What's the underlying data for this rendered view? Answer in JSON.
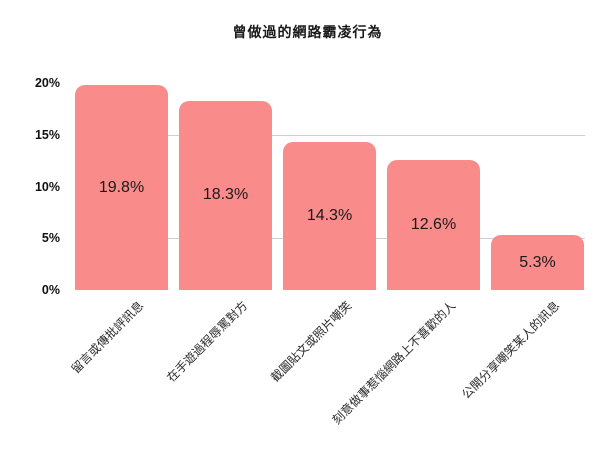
{
  "chart_data": {
    "type": "bar",
    "title": "曾做過的網路霸凌行為",
    "categories": [
      "留言或傳批評訊息",
      "在手遊過程辱罵對方",
      "截圖貼文或照片嘲笑",
      "刻意做事惹惱網路上不喜歡的人",
      "公開分享嘲笑某人的訊息"
    ],
    "values": [
      19.8,
      18.3,
      14.3,
      12.6,
      5.3
    ],
    "value_labels": [
      "19.8%",
      "18.3%",
      "14.3%",
      "12.6%",
      "5.3%"
    ],
    "xlabel": "",
    "ylabel": "",
    "y_ticks": [
      "0%",
      "5%",
      "10%",
      "15%",
      "20%"
    ],
    "y_tick_values": [
      0,
      5,
      10,
      15,
      20
    ],
    "ylim": [
      0,
      20
    ],
    "gridline_values": [
      5,
      15
    ],
    "legend_position": "none",
    "bar_color": "#F98B8B",
    "gridline_color": "#CFCFCF",
    "title_color": "#1A1A1A",
    "label_color": "#1A1A1A"
  }
}
